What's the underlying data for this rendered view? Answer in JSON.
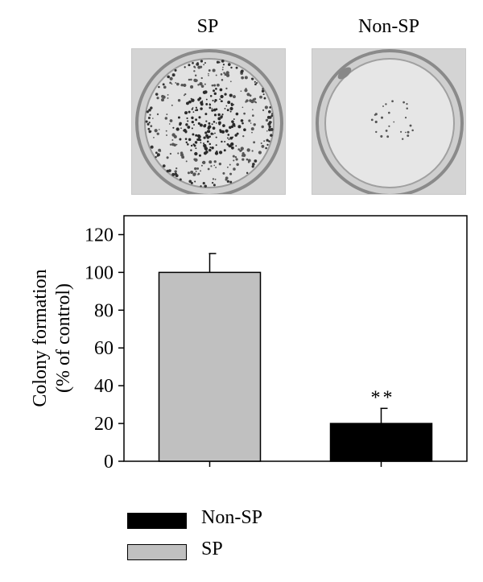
{
  "panels": [
    {
      "label": "SP"
    },
    {
      "label": "Non-SP"
    }
  ],
  "colors": {
    "sp": "#c0c0c0",
    "non_sp": "#000000"
  },
  "chart_data": {
    "type": "bar",
    "categories": [
      "SP",
      "Non-SP"
    ],
    "values": [
      100,
      20
    ],
    "errors": [
      10,
      8
    ],
    "significance": [
      "",
      "**"
    ],
    "ylabel_line1": "Colony formation",
    "ylabel_line2": "(% of control)",
    "ylim": [
      0,
      130
    ],
    "yticks": [
      0,
      20,
      40,
      60,
      80,
      100,
      120
    ],
    "legend": [
      {
        "name": "Non-SP",
        "color": "#000000"
      },
      {
        "name": "SP",
        "color": "#c0c0c0"
      }
    ],
    "legend_position": "bottom-left",
    "grid": false
  }
}
